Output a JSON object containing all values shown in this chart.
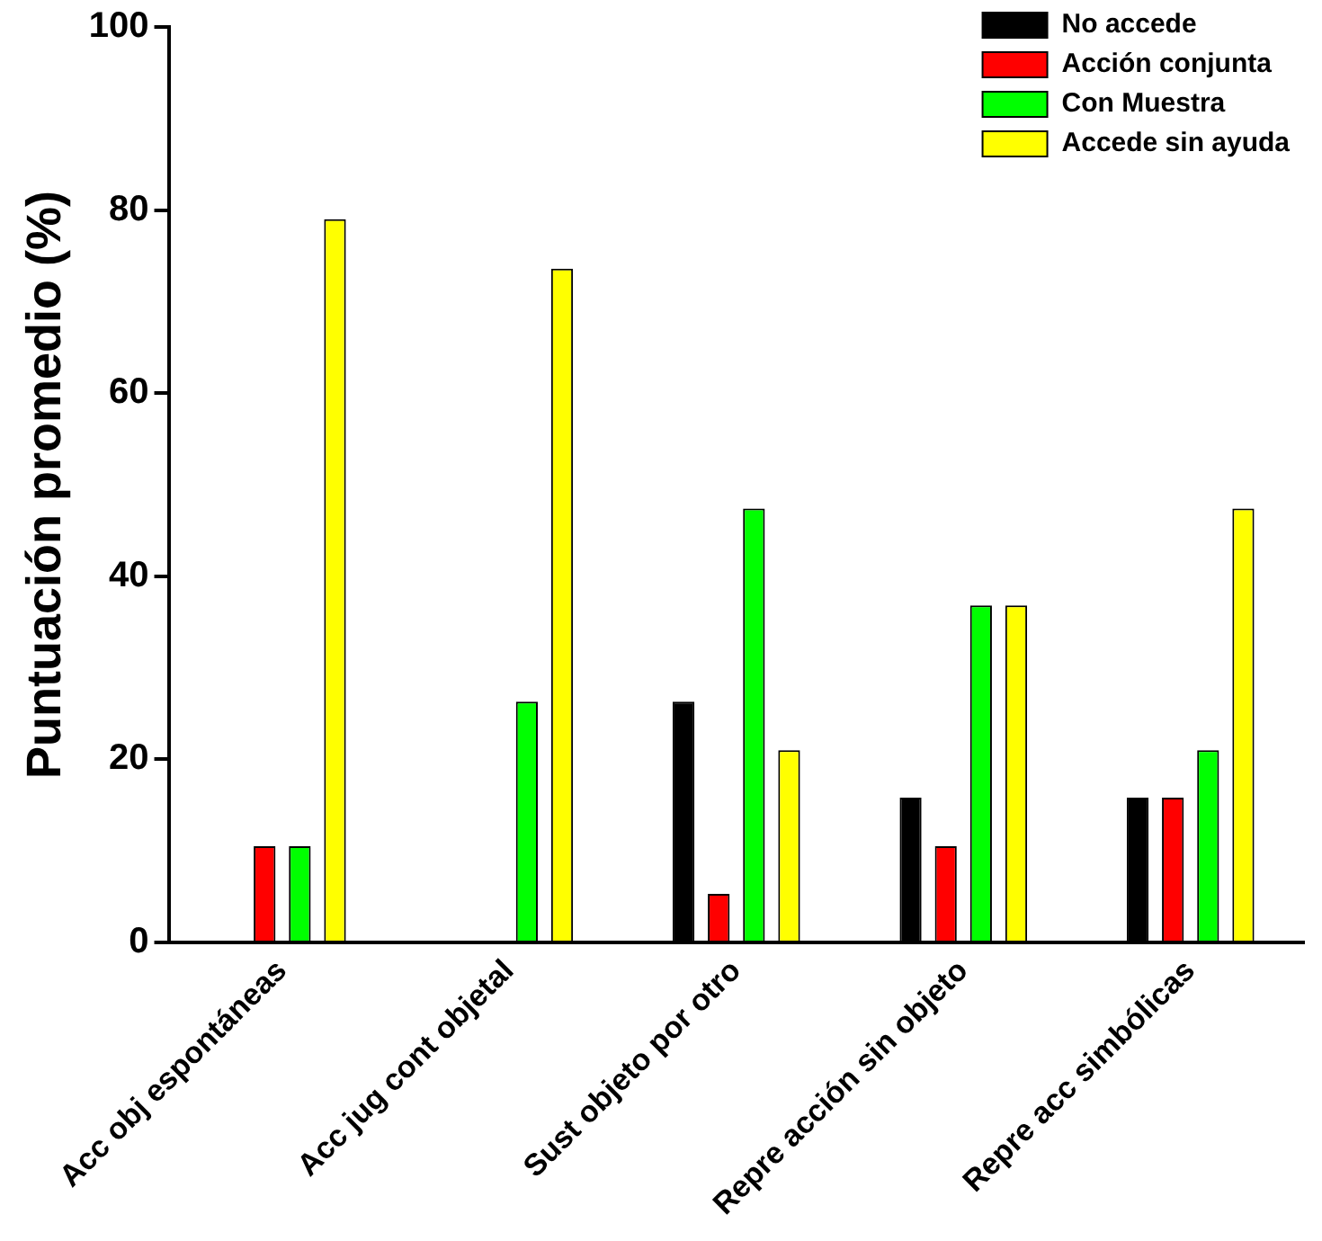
{
  "chart_data": {
    "type": "bar",
    "ylabel": "Puntuación promedio (%)",
    "categories": [
      "Acc obj espontáneas",
      "Acc jug cont objetal",
      "Sust objeto por otro",
      "Repre acción sin objeto",
      "Repre acc simbólicas"
    ],
    "series": [
      {
        "name": "No accede",
        "color": "#000000",
        "values": [
          0,
          0,
          26.3,
          15.8,
          15.8
        ]
      },
      {
        "name": "Acción conjunta",
        "color": "#ff0000",
        "values": [
          10.5,
          0,
          5.3,
          10.5,
          15.8
        ]
      },
      {
        "name": "Con Muestra",
        "color": "#00ff00",
        "values": [
          10.5,
          26.3,
          47.4,
          36.8,
          21
        ]
      },
      {
        "name": "Accede sin ayuda",
        "color": "#ffff00",
        "values": [
          79,
          73.6,
          21,
          36.8,
          47.4
        ]
      }
    ],
    "ylim": [
      0,
      100
    ],
    "yticks": [
      0,
      20,
      40,
      60,
      80,
      100
    ],
    "grid": false,
    "legend": "top right"
  }
}
